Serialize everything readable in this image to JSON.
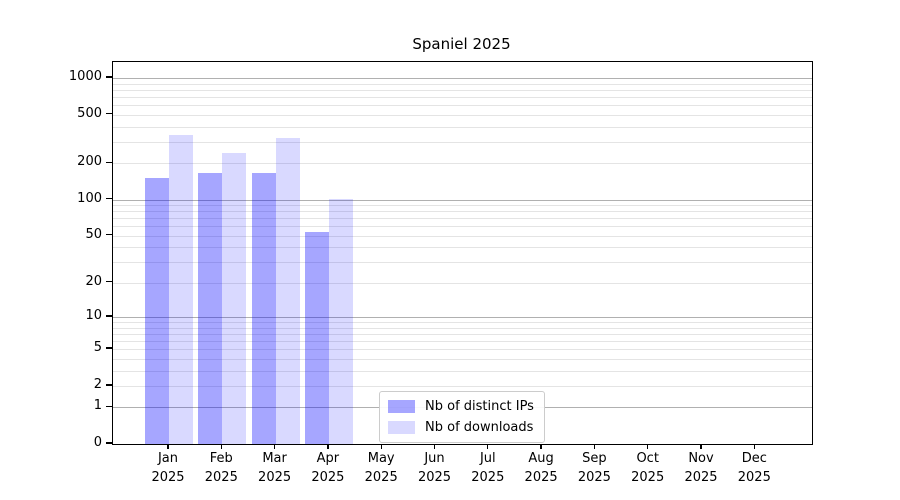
{
  "title": "Spaniel 2025",
  "colors": {
    "bar_distinct_ips": "#0000FF59",
    "bar_downloads": "#0000FF26",
    "major_grid": "#b0b0b0",
    "minor_grid": "#e4e4e4",
    "axis_frame": "#000000",
    "text": "#000000",
    "legend_border": "#cccccc",
    "background": "#ffffff"
  },
  "chart_data": {
    "type": "bar",
    "title": "Spaniel 2025",
    "x_months": [
      "Jan",
      "Feb",
      "Mar",
      "Apr",
      "May",
      "Jun",
      "Jul",
      "Aug",
      "Sep",
      "Oct",
      "Nov",
      "Dec"
    ],
    "x_year": "2025",
    "series": [
      {
        "name": "Nb of distinct IPs",
        "color": "#0000FF59",
        "values": [
          151,
          166,
          165,
          54,
          null,
          null,
          null,
          null,
          null,
          null,
          null,
          null
        ]
      },
      {
        "name": "Nb of downloads",
        "color": "#0000FF26",
        "values": [
          341,
          244,
          323,
          102,
          null,
          null,
          null,
          null,
          null,
          null,
          null,
          null
        ]
      }
    ],
    "y_scale": "log1p",
    "ylim": [
      0,
      1355
    ],
    "y_tick_labels": [
      0,
      1,
      2,
      5,
      10,
      20,
      50,
      100,
      200,
      500,
      1000
    ],
    "y_major_gridlines": [
      1,
      10,
      100,
      1000
    ],
    "y_minor_gridlines": [
      2,
      3,
      4,
      5,
      6,
      7,
      8,
      9,
      20,
      30,
      40,
      50,
      60,
      70,
      80,
      90,
      200,
      300,
      400,
      500,
      600,
      700,
      800,
      900
    ],
    "grid": true,
    "legend_position": "lower center-left, inside axes"
  }
}
